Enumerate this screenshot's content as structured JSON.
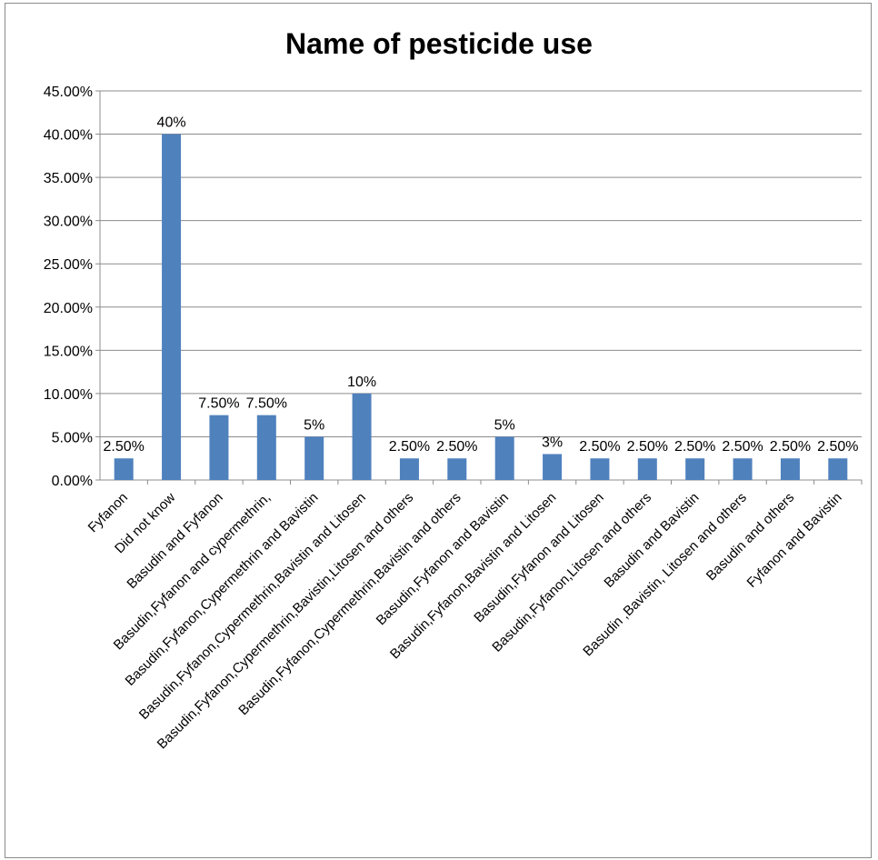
{
  "chart_data": {
    "type": "bar",
    "title": "Name of pesticide use",
    "xlabel": "",
    "ylabel": "",
    "ylim": [
      0,
      0.45
    ],
    "y_ticks": [
      "0.00%",
      "5.00%",
      "10.00%",
      "15.00%",
      "20.00%",
      "25.00%",
      "30.00%",
      "35.00%",
      "40.00%",
      "45.00%"
    ],
    "grid": true,
    "legend": "none",
    "bar_color": "#4f81bd",
    "categories": [
      "Fyfanon",
      "Did not know",
      "Basudin and Fyfanon",
      "Basudin,Fyfanon and cypermethrin,",
      "Basudin,Fyfanon,Cypermethrin and Bavistin",
      "Basudin,Fyfanon,Cypermethrin,Bavistin and Litosen",
      "Basudin,Fyfanon,Cypermethrin,Bavistin,Litosen and others",
      "Basudin,Fyfanon,Cypermethrin,Bavistin and others",
      "Basudin,Fyfanon and Bavistin",
      "Basudin,Fyfanon,Bavistin and Litosen",
      "Basudin,Fyfanon and Litosen",
      "Basudin,Fyfanon,Litosen and others",
      "Basudin and Bavistin",
      "Basudin ,Bavistin, Litosen and others",
      "Basudin and others",
      "Fyfanon and Bavistin"
    ],
    "values": [
      0.025,
      0.4,
      0.075,
      0.075,
      0.05,
      0.1,
      0.025,
      0.025,
      0.05,
      0.03,
      0.025,
      0.025,
      0.025,
      0.025,
      0.025,
      0.025
    ],
    "data_labels": [
      "2.50%",
      "40%",
      "7.50%",
      "7.50%",
      "5%",
      "10%",
      "2.50%",
      "2.50%",
      "5%",
      "3%",
      "2.50%",
      "2.50%",
      "2.50%",
      "2.50%",
      "2.50%",
      "2.50%"
    ]
  }
}
